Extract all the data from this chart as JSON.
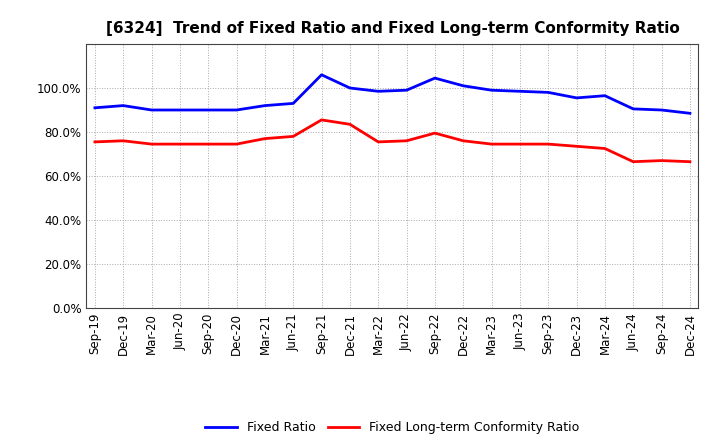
{
  "title": "[6324]  Trend of Fixed Ratio and Fixed Long-term Conformity Ratio",
  "x_labels": [
    "Sep-19",
    "Dec-19",
    "Mar-20",
    "Jun-20",
    "Sep-20",
    "Dec-20",
    "Mar-21",
    "Jun-21",
    "Sep-21",
    "Dec-21",
    "Mar-22",
    "Jun-22",
    "Sep-22",
    "Dec-22",
    "Mar-23",
    "Jun-23",
    "Sep-23",
    "Dec-23",
    "Mar-24",
    "Jun-24",
    "Sep-24",
    "Dec-24"
  ],
  "fixed_ratio": [
    91.0,
    92.0,
    90.0,
    90.0,
    90.0,
    90.0,
    92.0,
    93.0,
    106.0,
    100.0,
    98.5,
    99.0,
    104.5,
    101.0,
    99.0,
    98.5,
    98.0,
    95.5,
    96.5,
    90.5,
    90.0,
    88.5
  ],
  "fixed_lt_ratio": [
    75.5,
    76.0,
    74.5,
    74.5,
    74.5,
    74.5,
    77.0,
    78.0,
    85.5,
    83.5,
    75.5,
    76.0,
    79.5,
    76.0,
    74.5,
    74.5,
    74.5,
    73.5,
    72.5,
    66.5,
    67.0,
    66.5
  ],
  "fixed_ratio_color": "#0000FF",
  "fixed_lt_ratio_color": "#FF0000",
  "ylim": [
    0,
    120
  ],
  "yticks": [
    0,
    20,
    40,
    60,
    80,
    100
  ],
  "plot_bg_color": "#FFFFFF",
  "fig_bg_color": "#FFFFFF",
  "grid_color": "#AAAAAA",
  "spine_color": "#444444",
  "legend_labels": [
    "Fixed Ratio",
    "Fixed Long-term Conformity Ratio"
  ],
  "title_fontsize": 11,
  "tick_fontsize": 8.5,
  "line_width": 2.0
}
